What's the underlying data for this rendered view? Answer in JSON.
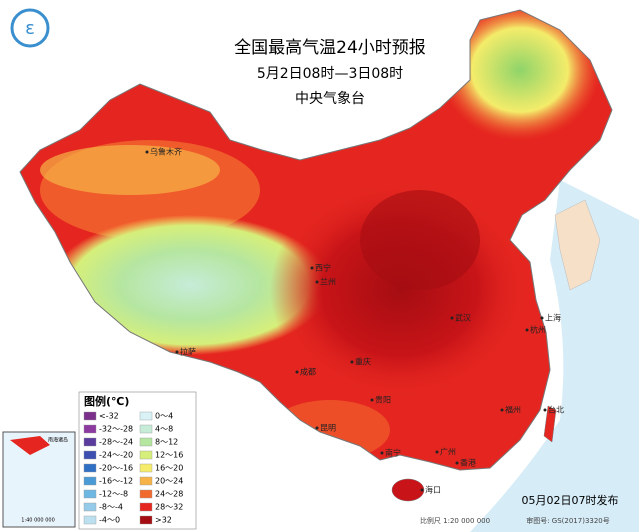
{
  "header": {
    "title": "全国最高气温24小时预报",
    "subtitle": "5月2日08时—3日08时",
    "issuer": "中央气象台"
  },
  "legend": {
    "title": "图例(℃)",
    "items": [
      {
        "label": "<-32",
        "color": "#7a2f8a"
      },
      {
        "label": "0～4",
        "color": "#d8f2f5"
      },
      {
        "label": "-32～-28",
        "color": "#8c3aa0"
      },
      {
        "label": "4～8",
        "color": "#c6ecd8"
      },
      {
        "label": "-28～-24",
        "color": "#5a3c9e"
      },
      {
        "label": "8～12",
        "color": "#b5e6a0"
      },
      {
        "label": "-24～-20",
        "color": "#3d4fb0"
      },
      {
        "label": "12～16",
        "color": "#d6ef7a"
      },
      {
        "label": "-20～-16",
        "color": "#2f6fc4"
      },
      {
        "label": "16～20",
        "color": "#f4ec6a"
      },
      {
        "label": "-16～-12",
        "color": "#4a9ad6"
      },
      {
        "label": "20～24",
        "color": "#f7b347"
      },
      {
        "label": "-12～-8",
        "color": "#6fb7e3"
      },
      {
        "label": "24～28",
        "color": "#f2692e"
      },
      {
        "label": "-8～-4",
        "color": "#95cbe9"
      },
      {
        "label": "28～32",
        "color": "#e52620"
      },
      {
        "label": "-4～0",
        "color": "#bde0f0"
      },
      {
        "label": ">32",
        "color": "#a50d12"
      }
    ]
  },
  "cities": [
    "乌鲁木齐",
    "西宁",
    "兰州",
    "拉萨",
    "成都",
    "重庆",
    "贵阳",
    "昆明",
    "南宁",
    "广州",
    "香港",
    "海口",
    "福州",
    "台北",
    "杭州",
    "上海",
    "武汉"
  ],
  "inset": {
    "label": "南海诸岛",
    "scale": "1:40 000 000"
  },
  "footer": {
    "issued": "05月02日07时发布",
    "scale": "比例尺 1:20 000 000",
    "approval": "审图号: GS(2017)3320号"
  }
}
